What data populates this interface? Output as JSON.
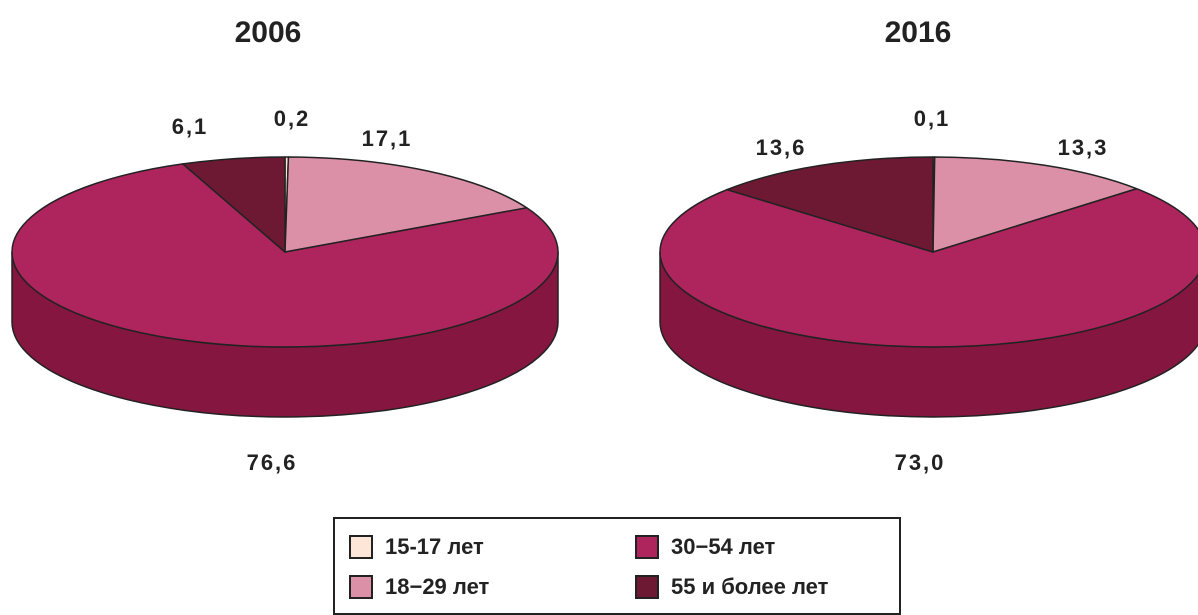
{
  "chart_data": [
    {
      "type": "pie",
      "title": "2006",
      "categories": [
        "15-17 лет",
        "18−29 лет",
        "30−54 лет",
        "55 и более лет"
      ],
      "values": [
        0.2,
        17.1,
        76.6,
        6.1
      ],
      "value_labels": [
        "0,2",
        "17,1",
        "76,6",
        "6,1"
      ]
    },
    {
      "type": "pie",
      "title": "2016",
      "categories": [
        "15-17 лет",
        "18−29 лет",
        "30−54 лет",
        "55 и более лет"
      ],
      "values": [
        0.1,
        13.3,
        73.0,
        13.6
      ],
      "value_labels": [
        "0,1",
        "13,3",
        "73,0",
        "13,6"
      ]
    }
  ],
  "legend": {
    "items": [
      {
        "label": "15-17 лет",
        "color": "#fde5d8"
      },
      {
        "label": "30−54 лет",
        "color": "#ae255d"
      },
      {
        "label": "18−29 лет",
        "color": "#dc90a8"
      },
      {
        "label": "55 и более лет",
        "color": "#6e1933"
      }
    ]
  },
  "colors": {
    "slices": [
      "#fde5d8",
      "#dc90a8",
      "#ae255d",
      "#6e1933"
    ],
    "sides": [
      "#d6bcad",
      "#b3708a",
      "#84163f",
      "#4e0f23"
    ]
  }
}
